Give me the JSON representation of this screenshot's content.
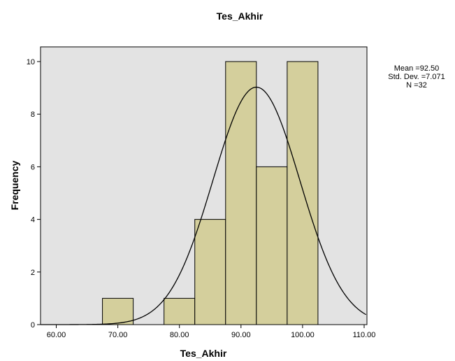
{
  "chart_data": {
    "type": "bar",
    "title": "Tes_Akhir",
    "xlabel": "Tes_Akhir",
    "ylabel": "Frequency",
    "xlim": [
      57.5,
      112.5
    ],
    "ylim": [
      0,
      10.0
    ],
    "x_ticks": [
      "60.00",
      "70.00",
      "80.00",
      "90.00",
      "100.00",
      "110.00"
    ],
    "x_tick_values": [
      60,
      70,
      80,
      90,
      100,
      110
    ],
    "y_ticks": [
      "0",
      "2",
      "4",
      "6",
      "8",
      "10"
    ],
    "y_tick_values": [
      0,
      2,
      4,
      6,
      8,
      10
    ],
    "bins": [
      {
        "start": 67.5,
        "end": 72.5,
        "count": 1
      },
      {
        "start": 77.5,
        "end": 82.5,
        "count": 1
      },
      {
        "start": 82.5,
        "end": 87.5,
        "count": 4
      },
      {
        "start": 87.5,
        "end": 92.5,
        "count": 10
      },
      {
        "start": 92.5,
        "end": 97.5,
        "count": 6
      },
      {
        "start": 97.5,
        "end": 102.5,
        "count": 10
      }
    ],
    "normal_curve": {
      "mean": 92.5,
      "sd": 7.071,
      "n": 32,
      "bin_width": 5
    },
    "stats_text": [
      "Mean =92.50",
      "Std. Dev. =7.071",
      "N =32"
    ],
    "colors": {
      "plot_background": "#e3e3e3",
      "bar_fill": "#d4cf9c",
      "bar_stroke": "#000000",
      "curve": "#000000"
    },
    "grid": false,
    "legend": "none"
  }
}
